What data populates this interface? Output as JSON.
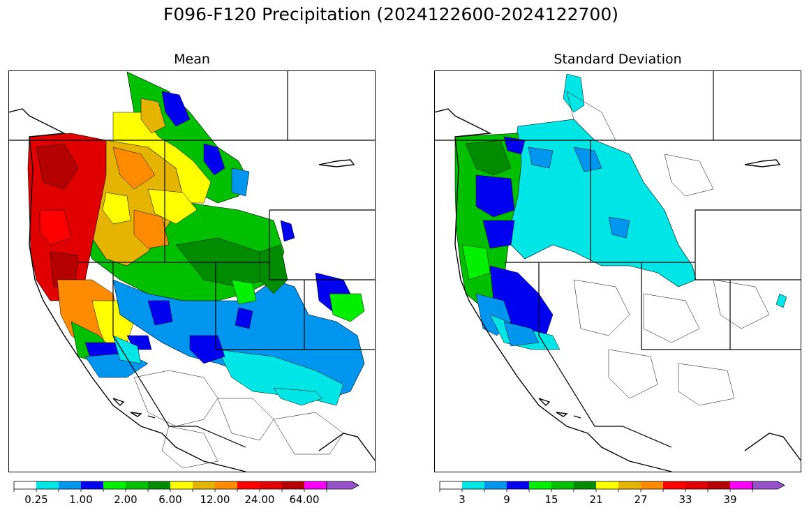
{
  "figure": {
    "title": "F096-F120 Precipitation (2024122600-2024122700)"
  },
  "panels": [
    {
      "id": "mean",
      "title": "Mean",
      "colorbar": {
        "tick_labels": [
          "0.25",
          "1.00",
          "2.00",
          "6.00",
          "12.00",
          "24.00",
          "64.00"
        ],
        "tick_bin_index": [
          1,
          3,
          5,
          7,
          9,
          11,
          13
        ]
      }
    },
    {
      "id": "std",
      "title": "Standard Deviation",
      "colorbar": {
        "tick_labels": [
          "3",
          "9",
          "15",
          "21",
          "27",
          "33",
          "39"
        ],
        "tick_bin_index": [
          1,
          3,
          5,
          7,
          9,
          11,
          13
        ]
      }
    }
  ],
  "colormap": [
    "#ffffff",
    "#00e5e5",
    "#0096f0",
    "#0000f0",
    "#00f000",
    "#00c000",
    "#008c00",
    "#ffff00",
    "#e5b400",
    "#ff8c00",
    "#ff0000",
    "#e10000",
    "#b40000",
    "#ff00ff",
    "#9650c8"
  ],
  "colors": {
    "border": "#000000",
    "coast": "#000000"
  }
}
